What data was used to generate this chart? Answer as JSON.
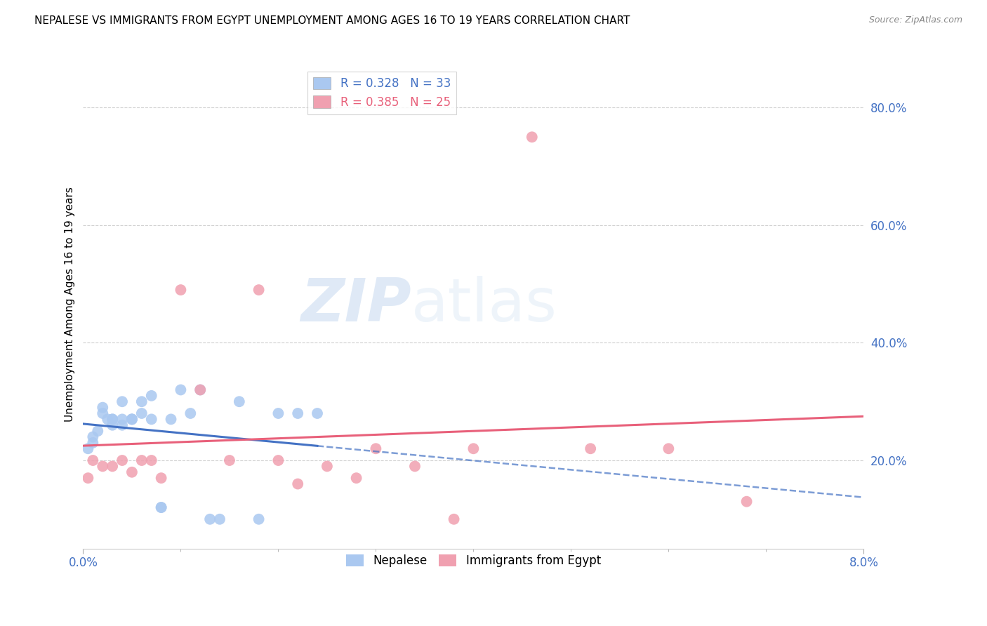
{
  "title": "NEPALESE VS IMMIGRANTS FROM EGYPT UNEMPLOYMENT AMONG AGES 16 TO 19 YEARS CORRELATION CHART",
  "source": "Source: ZipAtlas.com",
  "ylabel": "Unemployment Among Ages 16 to 19 years",
  "ylabel_ticks": [
    "20.0%",
    "40.0%",
    "60.0%",
    "80.0%"
  ],
  "ylabel_tick_vals": [
    0.2,
    0.4,
    0.6,
    0.8
  ],
  "xmin": 0.0,
  "xmax": 0.08,
  "ymin": 0.05,
  "ymax": 0.88,
  "legend_label1": "Nepalese",
  "legend_label2": "Immigrants from Egypt",
  "nepalese_color": "#aac8f0",
  "egypt_color": "#f0a0b0",
  "nepalese_line_color": "#4472c4",
  "egypt_line_color": "#e8607a",
  "watermark_zip": "ZIP",
  "watermark_atlas": "atlas",
  "grid_color": "#d0d0d0",
  "background_color": "#ffffff",
  "title_fontsize": 11,
  "tick_label_color": "#4472c4",
  "nepalese_x": [
    0.0005,
    0.001,
    0.001,
    0.0015,
    0.002,
    0.002,
    0.0025,
    0.003,
    0.003,
    0.003,
    0.004,
    0.004,
    0.004,
    0.005,
    0.005,
    0.005,
    0.006,
    0.006,
    0.007,
    0.007,
    0.008,
    0.008,
    0.009,
    0.01,
    0.011,
    0.012,
    0.013,
    0.014,
    0.016,
    0.018,
    0.02,
    0.022,
    0.024
  ],
  "nepalese_y": [
    0.22,
    0.23,
    0.24,
    0.25,
    0.28,
    0.29,
    0.27,
    0.26,
    0.27,
    0.27,
    0.3,
    0.27,
    0.26,
    0.27,
    0.27,
    0.27,
    0.28,
    0.3,
    0.31,
    0.27,
    0.12,
    0.12,
    0.27,
    0.32,
    0.28,
    0.32,
    0.1,
    0.1,
    0.3,
    0.1,
    0.28,
    0.28,
    0.28
  ],
  "egypt_x": [
    0.0005,
    0.001,
    0.002,
    0.003,
    0.004,
    0.005,
    0.006,
    0.007,
    0.008,
    0.01,
    0.012,
    0.015,
    0.018,
    0.02,
    0.022,
    0.025,
    0.028,
    0.03,
    0.034,
    0.038,
    0.04,
    0.046,
    0.052,
    0.06,
    0.068
  ],
  "egypt_y": [
    0.17,
    0.2,
    0.19,
    0.19,
    0.2,
    0.18,
    0.2,
    0.2,
    0.17,
    0.49,
    0.32,
    0.2,
    0.49,
    0.2,
    0.16,
    0.19,
    0.17,
    0.22,
    0.19,
    0.1,
    0.22,
    0.75,
    0.22,
    0.22,
    0.13
  ]
}
